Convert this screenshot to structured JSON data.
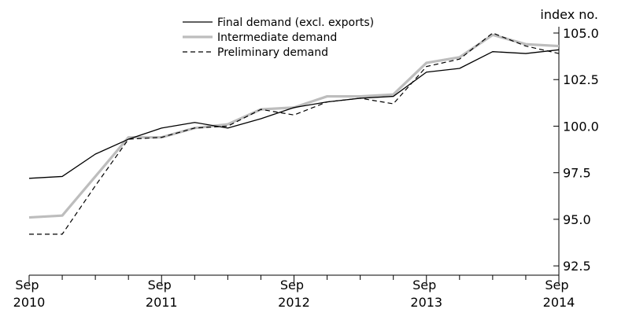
{
  "chart_data": {
    "type": "line",
    "y_axis_label": "index no.",
    "categories": [
      "Sep 2010",
      null,
      null,
      null,
      "Sep 2011",
      null,
      null,
      null,
      "Sep 2012",
      null,
      null,
      null,
      "Sep 2013",
      null,
      null,
      null,
      "Sep 2014"
    ],
    "series": [
      {
        "name": "Final demand (excl. exports)",
        "color": "#000000",
        "width": 1.3,
        "dashed": false,
        "values": [
          97.2,
          97.3,
          98.5,
          99.3,
          99.9,
          100.2,
          99.9,
          100.4,
          101.0,
          101.3,
          101.5,
          101.6,
          102.9,
          103.1,
          104.0,
          103.9,
          104.1
        ]
      },
      {
        "name": "Intermediate demand",
        "color": "#bdbdbd",
        "width": 3.2,
        "dashed": false,
        "values": [
          95.1,
          95.2,
          97.3,
          99.4,
          99.4,
          99.9,
          100.1,
          100.9,
          101.0,
          101.6,
          101.6,
          101.7,
          103.4,
          103.7,
          104.9,
          104.4,
          104.3
        ]
      },
      {
        "name": "Preliminary demand",
        "color": "#000000",
        "width": 1.2,
        "dashed": true,
        "values": [
          94.2,
          94.2,
          96.8,
          99.3,
          99.4,
          99.9,
          100.0,
          100.9,
          100.6,
          101.3,
          101.5,
          101.2,
          103.2,
          103.6,
          105.0,
          104.3,
          103.9
        ]
      }
    ],
    "ylim": [
      92,
      105
    ],
    "yticks": [
      {
        "value": 92.5,
        "label": "92.5"
      },
      {
        "value": 95,
        "label": "95.0"
      },
      {
        "value": 97.5,
        "label": "97.5"
      },
      {
        "value": 100,
        "label": "100.0"
      },
      {
        "value": 102.5,
        "label": "102.5"
      },
      {
        "value": 105,
        "label": "105.0"
      }
    ],
    "grid": false,
    "legend": "top"
  }
}
